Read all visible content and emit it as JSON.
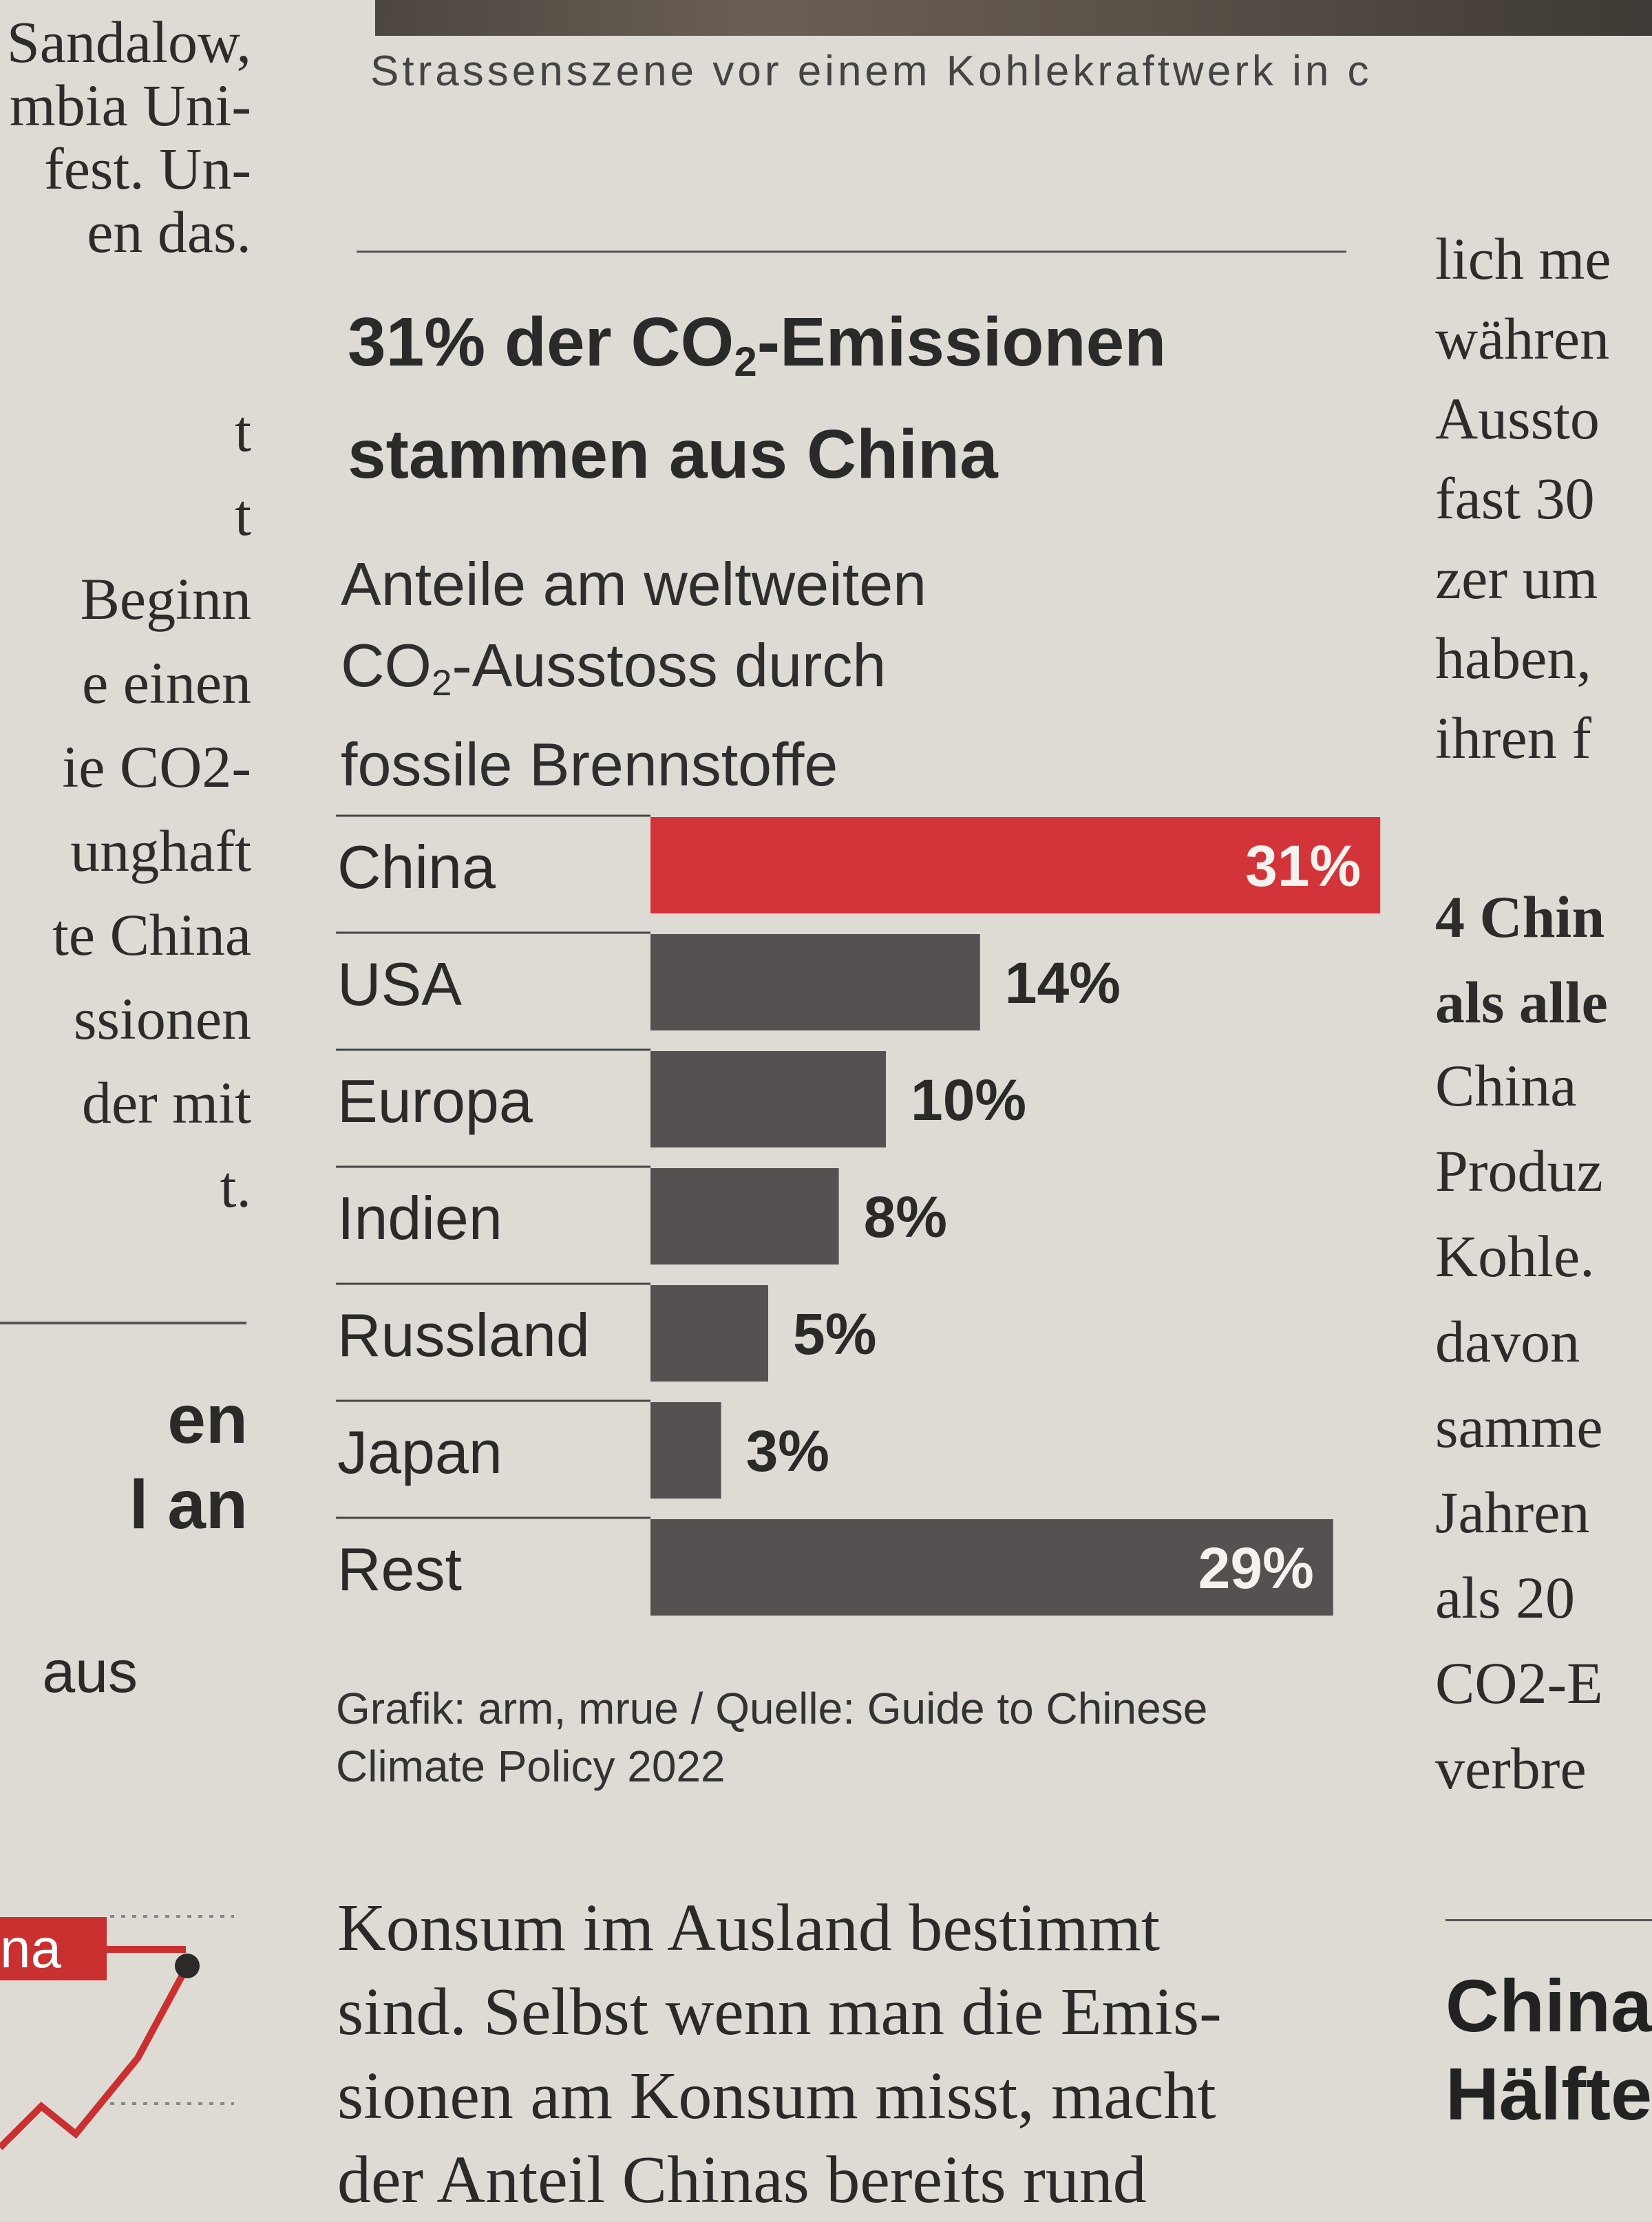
{
  "photo_caption": "Strassenszene vor einem Kohlekraftwerk in c",
  "left_column_lines": [
    "Sandalow,",
    "mbia Uni-",
    "fest. Un-",
    "en das."
  ],
  "left_column_lines2": [
    "t",
    "t",
    "Beginn",
    "e einen",
    "ie CO2-",
    "unghaft",
    "te China",
    "ssionen",
    "der mit",
    "t."
  ],
  "left_heading_lines": [
    "en",
    "l an"
  ],
  "left_aus": "aus",
  "left_tag": "na",
  "right_column_lines": [
    "lich me",
    "währen",
    "Aussto",
    "fast 30",
    "zer um",
    "haben,",
    "ihren f"
  ],
  "right_heading_lines": [
    "4 Chin",
    "als alle"
  ],
  "right_column_lines2": [
    "China",
    "Produz",
    "Kohle.",
    "davon",
    "samme",
    "Jahren",
    "als 20",
    "CO2-E",
    "verbre"
  ],
  "right_bottom_heading": [
    "China",
    "Hälfte"
  ],
  "chart_title_line1": "31% der CO",
  "chart_title_sub": "2",
  "chart_title_line1_end": "-Emissionen",
  "chart_title_line2": "stammen aus China",
  "chart_sub_line1": "Anteile am weltweiten",
  "chart_sub_line2a": "CO",
  "chart_sub_line2_sub": "2",
  "chart_sub_line2b": "-Ausstoss durch",
  "chart_sub_line3": "fossile Brennstoffe",
  "source_line1": "Grafik: arm, mrue / Quelle: Guide to Chinese",
  "source_line2": "Climate Policy 2022",
  "body_lines": [
    "Konsum im Ausland bestimmt",
    "sind. Selbst wenn man die Emis-",
    "sionen am Konsum misst, macht",
    "der Anteil Chinas bereits rund"
  ],
  "chart_data": {
    "type": "bar",
    "orientation": "horizontal",
    "categories": [
      "China",
      "USA",
      "Europa",
      "Indien",
      "Russland",
      "Japan",
      "Rest"
    ],
    "values": [
      31,
      14,
      10,
      8,
      5,
      3,
      29
    ],
    "value_labels": [
      "31%",
      "14%",
      "10%",
      "8%",
      "5%",
      "3%",
      "29%"
    ],
    "unit": "%",
    "highlight_category": "China",
    "highlight_color": "#d3343a",
    "bar_color": "#555150",
    "grid": false
  }
}
